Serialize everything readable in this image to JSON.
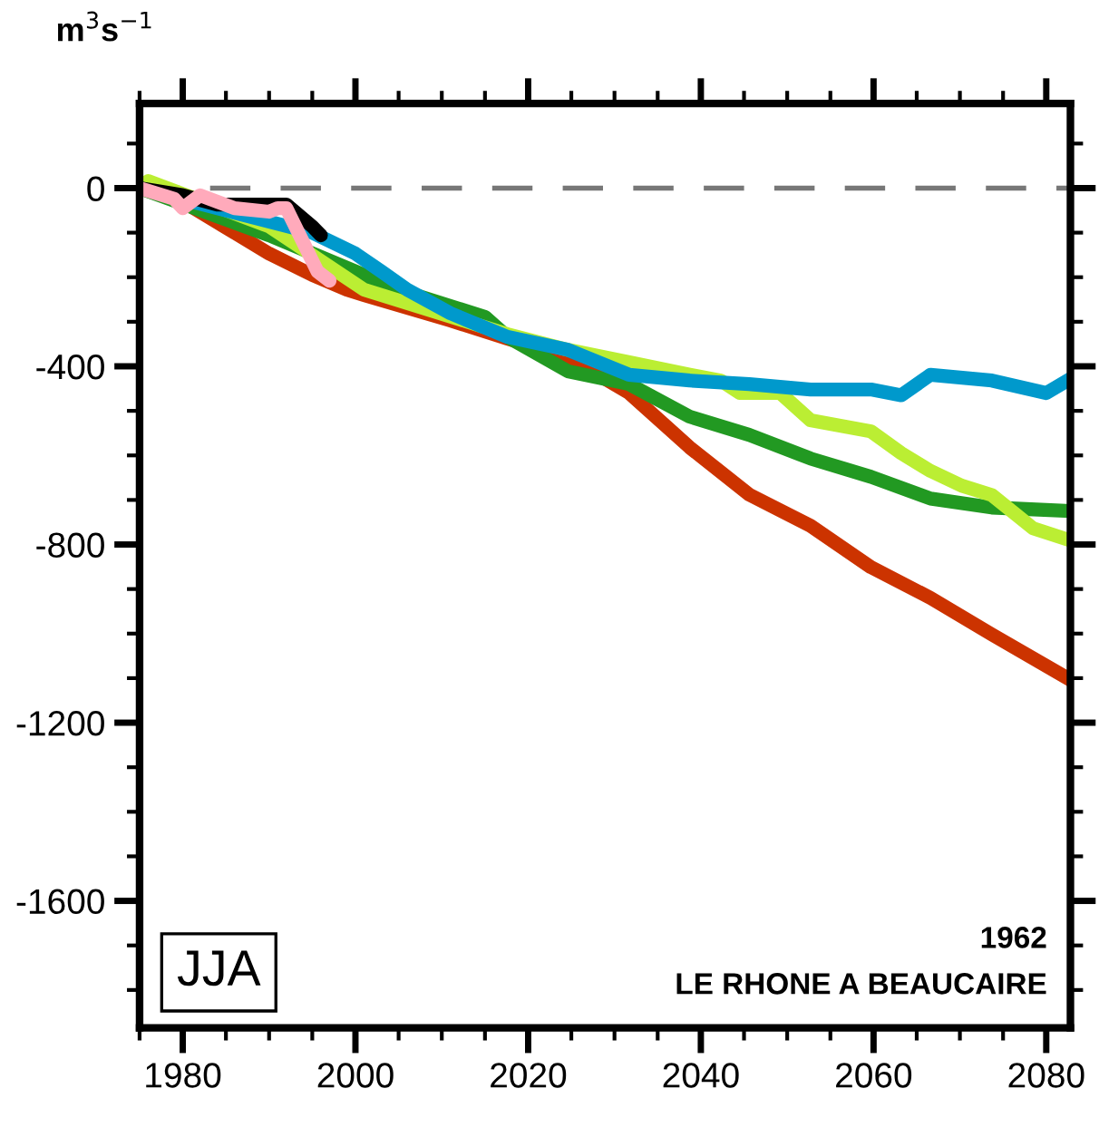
{
  "chart_data": {
    "type": "line",
    "ylabel": "m$^{3}$s$^{−1}$",
    "xlim": [
      1975,
      2082.8
    ],
    "ylim": [
      -1885,
      190
    ],
    "xticks": [
      1980,
      2000,
      2020,
      2040,
      2060,
      2080
    ],
    "yticks": [
      0,
      -400,
      -800,
      -1200,
      -1600
    ],
    "tick_labels": "xy",
    "grid": false,
    "legend": false,
    "line_style": "solid",
    "marker": "none",
    "ref_lines": [
      {
        "axis": "y",
        "value": 0,
        "color": "#777777",
        "line_style": "dashed"
      }
    ],
    "annotations": [
      "JJA",
      "1962",
      "LE RHONE A BEAUCAIRE"
    ],
    "series": [
      {
        "color": "#cc3300",
        "x": [
          1975,
          1980,
          1984,
          1990,
          1995,
          1999,
          2001,
          2011,
          2017.6,
          2024.6,
          2031.7,
          2038.7,
          2045.6,
          2052.7,
          2059.7,
          2066.6,
          2073.7,
          2082.8
        ],
        "values": [
          0,
          -30,
          -77,
          -147,
          -195,
          -228,
          -240,
          -297,
          -338,
          -379,
          -460,
          -582,
          -688,
          -758,
          -851,
          -920,
          -1002,
          -1104
        ]
      },
      {
        "color": "#229922",
        "x": [
          1975,
          1990,
          2000,
          2005,
          2015,
          2017.6,
          2024.6,
          2031.7,
          2038.7,
          2045.6,
          2052.7,
          2059.7,
          2066.6,
          2073.7,
          2082.8
        ],
        "values": [
          0,
          -106,
          -187,
          -228,
          -289,
          -334,
          -411,
          -440,
          -513,
          -554,
          -607,
          -648,
          -697,
          -717,
          -725
        ]
      },
      {
        "color": "#bbee33",
        "x": [
          1975,
          1976,
          1990,
          2001,
          2017.6,
          2024.6,
          2031.7,
          2038.7,
          2042.3,
          2044.5,
          2049.2,
          2052.7,
          2059.7,
          2063.2,
          2066.6,
          2070.2,
          2073.7,
          2078.5,
          2082.8
        ],
        "values": [
          0,
          16,
          -86,
          -228,
          -328,
          -363,
          -391,
          -419,
          -432,
          -460,
          -460,
          -521,
          -546,
          -595,
          -635,
          -668,
          -689,
          -764,
          -791
        ]
      },
      {
        "color": "#0099cc",
        "x": [
          1975,
          1995,
          2000,
          2003,
          2006,
          2011,
          2017.6,
          2024.6,
          2031.7,
          2038.7,
          2045.6,
          2052.7,
          2059.7,
          2063.2,
          2066.6,
          2073.7,
          2080,
          2082.8
        ],
        "values": [
          0,
          -100,
          -147,
          -187,
          -228,
          -281,
          -334,
          -363,
          -419,
          -432,
          -440,
          -452,
          -452,
          -465,
          -419,
          -432,
          -460,
          -428
        ]
      },
      {
        "color": "#000000",
        "x": [
          1975,
          1980,
          1984,
          1992,
          1995,
          1996
        ],
        "values": [
          0,
          -16,
          -37,
          -37,
          -86,
          -106
        ]
      },
      {
        "color": "#ffaabb",
        "x": [
          1975,
          1979,
          1980,
          1982,
          1986,
          1990,
          1991,
          1992,
          1995.6,
          1997
        ],
        "values": [
          0,
          -24,
          -45,
          -16,
          -45,
          -53,
          -45,
          -45,
          -187,
          -208
        ]
      }
    ]
  }
}
